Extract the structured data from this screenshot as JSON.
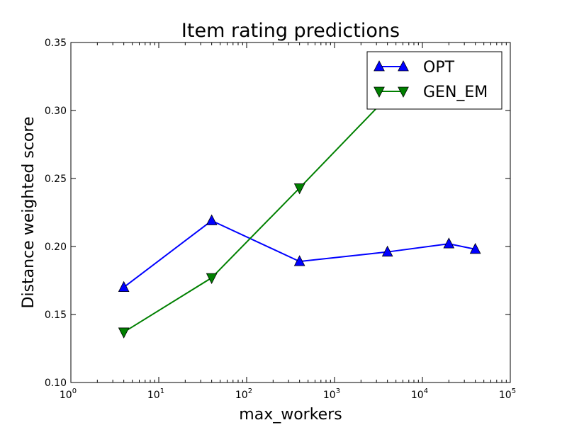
{
  "chart_data": {
    "type": "line",
    "title": "Item rating predictions",
    "xlabel": "max_workers",
    "ylabel": "Distance weighted score",
    "xscale": "log",
    "xlim": [
      1,
      100000
    ],
    "ylim": [
      0.1,
      0.35
    ],
    "grid": false,
    "legend_position": "top-right",
    "x_tick_labels": [
      {
        "value": 1,
        "base": "10",
        "exp": "0"
      },
      {
        "value": 10,
        "base": "10",
        "exp": "1"
      },
      {
        "value": 100,
        "base": "10",
        "exp": "2"
      },
      {
        "value": 1000,
        "base": "10",
        "exp": "3"
      },
      {
        "value": 10000,
        "base": "10",
        "exp": "4"
      },
      {
        "value": 100000,
        "base": "10",
        "exp": "5"
      }
    ],
    "y_tick_labels": [
      {
        "value": 0.1,
        "label": "0.10"
      },
      {
        "value": 0.15,
        "label": "0.15"
      },
      {
        "value": 0.2,
        "label": "0.20"
      },
      {
        "value": 0.25,
        "label": "0.25"
      },
      {
        "value": 0.3,
        "label": "0.30"
      },
      {
        "value": 0.35,
        "label": "0.35"
      }
    ],
    "series": [
      {
        "name": "OPT",
        "color": "#0000ff",
        "marker": "triangle-up",
        "x": [
          4,
          40,
          400,
          4000,
          20000,
          40000
        ],
        "y": [
          0.17,
          0.219,
          0.189,
          0.196,
          0.202,
          0.198
        ]
      },
      {
        "name": "GEN_EM",
        "color": "#008000",
        "marker": "triangle-down",
        "x": [
          4,
          40,
          400,
          4000
        ],
        "y": [
          0.137,
          0.177,
          0.243,
          0.31
        ]
      }
    ]
  }
}
